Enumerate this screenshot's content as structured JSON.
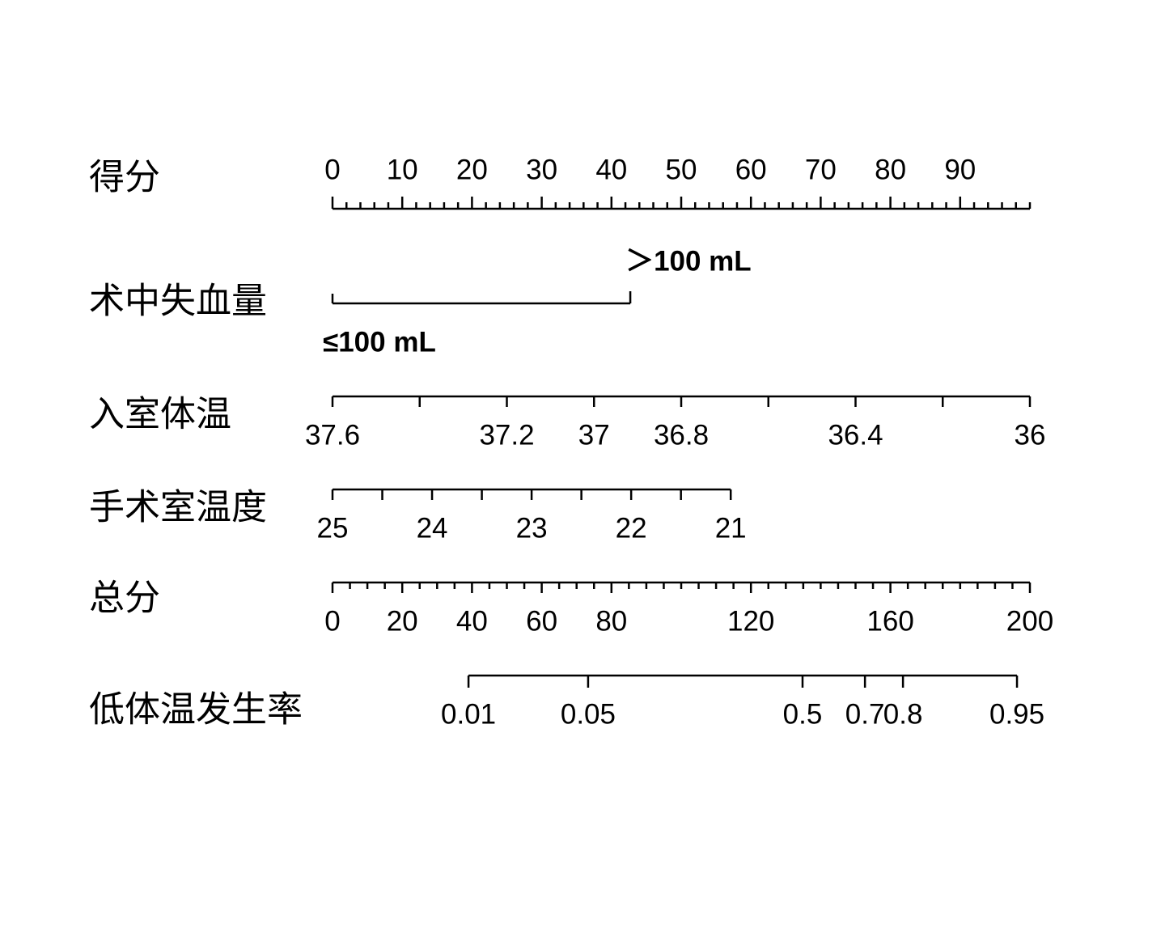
{
  "chart_data": {
    "type": "nomogram",
    "rows": [
      {
        "label": "得分",
        "kind": "points",
        "lim": [
          0,
          100
        ],
        "ticks": [
          0,
          10,
          20,
          30,
          40,
          50,
          60,
          70,
          80,
          90
        ],
        "minor_ticks": [
          2,
          4,
          6,
          8,
          12,
          14,
          16,
          18,
          22,
          24,
          26,
          28,
          32,
          34,
          36,
          38,
          42,
          44,
          46,
          48,
          52,
          54,
          56,
          58,
          62,
          64,
          66,
          68,
          72,
          74,
          76,
          78,
          82,
          84,
          86,
          88,
          92,
          94,
          96,
          98,
          100
        ]
      },
      {
        "label": "术中失血量",
        "kind": "categorical",
        "categories": [
          "≤100 mL",
          "＞100 mL"
        ],
        "points": [
          0,
          42.7
        ]
      },
      {
        "label": "入室体温",
        "kind": "continuous",
        "lim": [
          37.6,
          36
        ],
        "points": [
          0,
          100
        ],
        "ticks": [
          37.6,
          37.2,
          37,
          36.8,
          36.4,
          36
        ],
        "minor_ticks": [
          37.4,
          36.6,
          36.2
        ]
      },
      {
        "label": "手术室温度",
        "kind": "continuous",
        "lim": [
          25,
          21
        ],
        "points": [
          0,
          57.1
        ],
        "ticks": [
          25,
          24,
          23,
          22,
          21
        ],
        "minor_ticks": [
          24.5,
          23.5,
          22.5,
          21.5
        ]
      },
      {
        "label": "总分",
        "kind": "total",
        "lim": [
          0,
          200
        ],
        "ticks": [
          0,
          20,
          40,
          60,
          80,
          120,
          160,
          200
        ],
        "minor_ticks": [
          5,
          10,
          15,
          25,
          30,
          35,
          45,
          50,
          55,
          65,
          70,
          75,
          85,
          90,
          95,
          100,
          105,
          110,
          115,
          125,
          130,
          135,
          140,
          145,
          150,
          155,
          165,
          170,
          175,
          180,
          185,
          190,
          195
        ]
      },
      {
        "label": "低体温发生率",
        "kind": "probability",
        "ticks": [
          {
            "value": 0.01,
            "total_points": 39
          },
          {
            "value": 0.05,
            "total_points": 73.3
          },
          {
            "value": 0.5,
            "total_points": 134.8
          },
          {
            "value": 0.7,
            "total_points": 152.7
          },
          {
            "value": 0.8,
            "total_points": 163.6
          },
          {
            "value": 0.95,
            "total_points": 196.3
          }
        ]
      }
    ]
  }
}
